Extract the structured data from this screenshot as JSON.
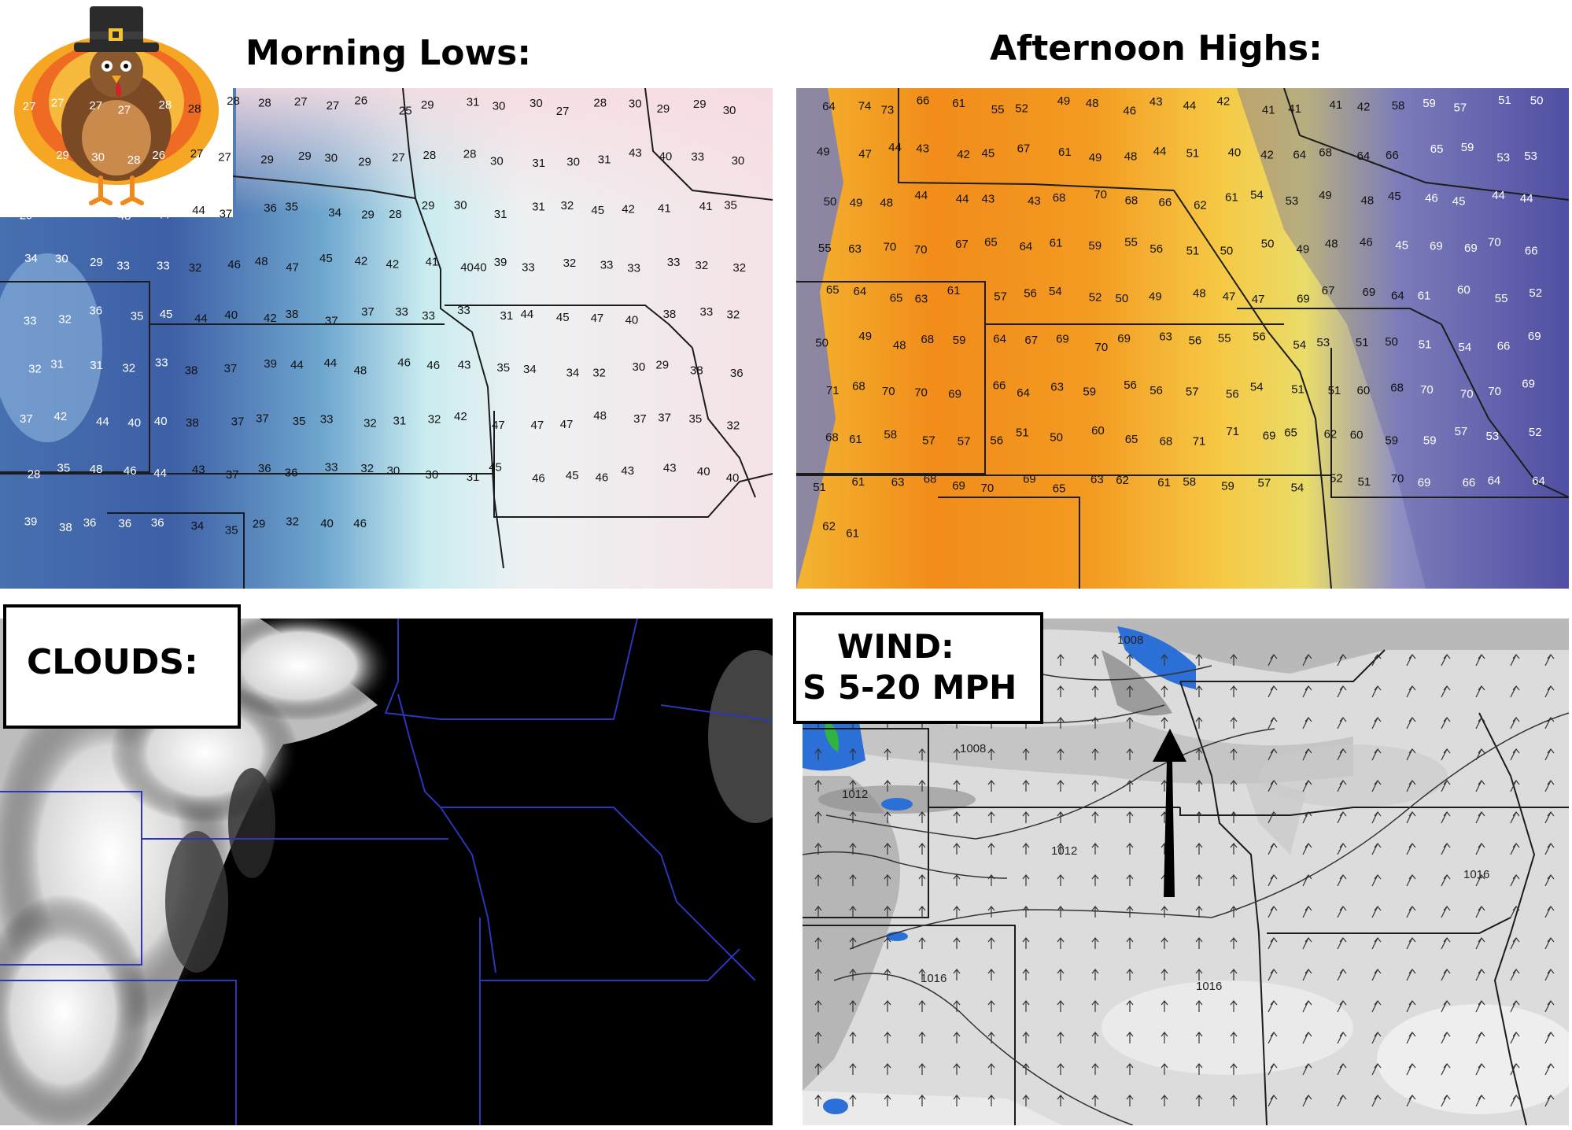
{
  "titles": {
    "lows": "Morning Lows:",
    "highs": "Afternoon Highs:",
    "clouds": "CLOUDS:",
    "wind_line1": "WIND:",
    "wind_line2": "S 5-20 MPH"
  },
  "colors": {
    "lows_cold": "#3f63a8",
    "lows_mid": "#bfe3ef",
    "lows_warm": "#f6dde2",
    "highs_hot": "#f28a14",
    "highs_warm": "#f6d14c",
    "highs_cool": "#5b5aa8",
    "clouds_bg": "#000000",
    "state_lines_clouds": "#2b36b8",
    "wind_gray": "#d9d9d9",
    "arrow": "#000000"
  },
  "icons": {
    "turkey": "turkey-pilgrim-hat-icon",
    "wind_direction": "north-arrow-icon"
  },
  "lows_values": [
    "27",
    "27",
    "27",
    "27",
    "28",
    "28",
    "28",
    "28",
    "27",
    "27",
    "26",
    "25",
    "29",
    "31",
    "30",
    "30",
    "27",
    "28",
    "30",
    "29",
    "29",
    "30",
    "29",
    "29",
    "30",
    "28",
    "26",
    "27",
    "27",
    "29",
    "29",
    "30",
    "29",
    "27",
    "28",
    "28",
    "30",
    "31",
    "30",
    "31",
    "43",
    "40",
    "33",
    "30",
    "29",
    "31",
    "31",
    "48",
    "44",
    "44",
    "37",
    "36",
    "35",
    "34",
    "29",
    "28",
    "29",
    "30",
    "31",
    "31",
    "32",
    "45",
    "42",
    "41",
    "41",
    "35",
    "34",
    "30",
    "29",
    "33",
    "33",
    "32",
    "46",
    "48",
    "47",
    "45",
    "42",
    "42",
    "41",
    "4040",
    "39",
    "33",
    "32",
    "33",
    "33",
    "33",
    "32",
    "32",
    "33",
    "32",
    "36",
    "35",
    "45",
    "44",
    "40",
    "42",
    "38",
    "37",
    "37",
    "33",
    "33",
    "33",
    "31",
    "44",
    "45",
    "47",
    "40",
    "38",
    "33",
    "32",
    "32",
    "31",
    "31",
    "32",
    "33",
    "38",
    "37",
    "39",
    "44",
    "44",
    "48",
    "46",
    "46",
    "43",
    "35",
    "34",
    "34",
    "32",
    "30",
    "29",
    "38",
    "36",
    "37",
    "42",
    "44",
    "40",
    "40",
    "38",
    "37",
    "37",
    "35",
    "33",
    "32",
    "31",
    "32",
    "42",
    "47",
    "47",
    "47",
    "48",
    "37",
    "37",
    "35",
    "32",
    "28",
    "35",
    "48",
    "46",
    "44",
    "43",
    "37",
    "36",
    "36",
    "33",
    "32",
    "30",
    "30",
    "31",
    "45",
    "46",
    "45",
    "46",
    "43",
    "43",
    "40",
    "40",
    "39",
    "38",
    "36",
    "36",
    "36",
    "34",
    "35",
    "29",
    "32",
    "40",
    "46"
  ],
  "highs_values": [
    "64",
    "74",
    "73",
    "66",
    "61",
    "55",
    "52",
    "49",
    "48",
    "46",
    "43",
    "44",
    "42",
    "41",
    "41",
    "41",
    "42",
    "58",
    "59",
    "57",
    "51",
    "50",
    "49",
    "47",
    "44",
    "43",
    "42",
    "45",
    "67",
    "61",
    "49",
    "48",
    "44",
    "51",
    "40",
    "42",
    "64",
    "68",
    "64",
    "66",
    "65",
    "59",
    "53",
    "53",
    "50",
    "49",
    "48",
    "44",
    "44",
    "43",
    "43",
    "68",
    "70",
    "68",
    "66",
    "62",
    "61",
    "54",
    "53",
    "49",
    "48",
    "45",
    "46",
    "45",
    "44",
    "44",
    "55",
    "63",
    "70",
    "70",
    "67",
    "65",
    "64",
    "61",
    "59",
    "55",
    "56",
    "51",
    "50",
    "50",
    "49",
    "48",
    "46",
    "45",
    "69",
    "69",
    "70",
    "66",
    "65",
    "64",
    "65",
    "63",
    "61",
    "57",
    "56",
    "54",
    "52",
    "50",
    "49",
    "48",
    "47",
    "47",
    "69",
    "67",
    "69",
    "64",
    "61",
    "60",
    "55",
    "52",
    "50",
    "49",
    "48",
    "68",
    "59",
    "64",
    "67",
    "69",
    "70",
    "69",
    "63",
    "56",
    "55",
    "56",
    "54",
    "53",
    "51",
    "50",
    "51",
    "54",
    "66",
    "69",
    "71",
    "68",
    "70",
    "70",
    "69",
    "66",
    "64",
    "63",
    "59",
    "56",
    "56",
    "57",
    "56",
    "54",
    "51",
    "51",
    "60",
    "68",
    "70",
    "70",
    "70",
    "69",
    "68",
    "61",
    "58",
    "57",
    "57",
    "56",
    "51",
    "50",
    "60",
    "65",
    "68",
    "71",
    "71",
    "69",
    "65",
    "62",
    "60",
    "59",
    "59",
    "57",
    "53",
    "52",
    "51",
    "61",
    "63",
    "68",
    "69",
    "70",
    "69",
    "65",
    "63",
    "62",
    "61",
    "58",
    "59",
    "57",
    "54",
    "52",
    "51",
    "70",
    "69",
    "66",
    "64",
    "64",
    "62",
    "61"
  ],
  "isobars": [
    "1008",
    "1008",
    "1012",
    "1012",
    "1016",
    "1016",
    "1016"
  ]
}
